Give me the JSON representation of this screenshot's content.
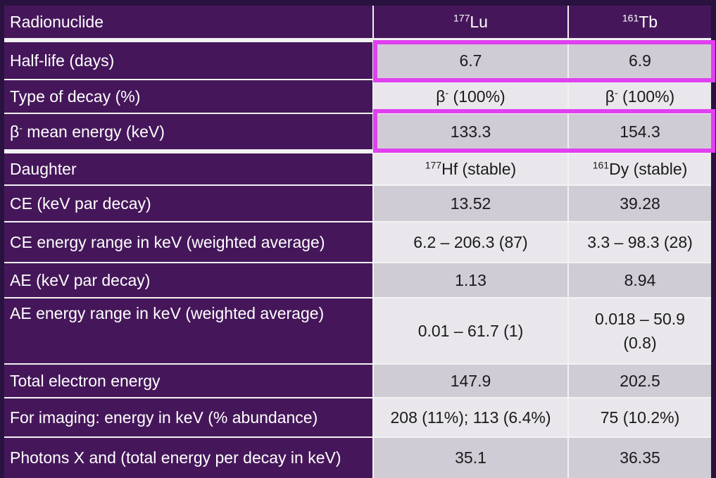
{
  "table": {
    "header": {
      "label": "Radionuclide",
      "col1_sup": "177",
      "col1_name": "Lu",
      "col2_sup": "161",
      "col2_name": "Tb"
    },
    "rows": {
      "half_life": {
        "label": "Half-life (days)",
        "lu": "6.7",
        "tb": "6.9"
      },
      "decay_type": {
        "label": "Type of decay (%)",
        "lu_sym": "β",
        "lu_sup": "-",
        "lu_val": " (100%)",
        "tb_sym": "β",
        "tb_sup": "-",
        "tb_val": " (100%)"
      },
      "beta_mean": {
        "label_sym": "β",
        "label_sup": "-",
        "label_rest": " mean energy (keV)",
        "lu": "133.3",
        "tb": "154.3"
      },
      "daughter": {
        "label": "Daughter",
        "lu_sup": "177",
        "lu_val": "Hf (stable)",
        "tb_sup": "161",
        "tb_val": "Dy (stable)"
      },
      "ce": {
        "label": "CE (keV par decay)",
        "lu": "13.52",
        "tb": "39.28"
      },
      "ce_range": {
        "label": "CE energy range in keV (weighted average)",
        "lu": "6.2 – 206.3 (87)",
        "tb": "3.3 – 98.3 (28)"
      },
      "ae": {
        "label": "AE (keV par decay)",
        "lu": "1.13",
        "tb": "8.94"
      },
      "ae_range": {
        "label": "AE energy range in keV (weighted average)",
        "lu": "0.01 – 61.7 (1)",
        "tb_line1": "0.018 – 50.9",
        "tb_line2": "(0.8)"
      },
      "total_electron": {
        "label": "Total electron energy",
        "lu": "147.9",
        "tb": "202.5"
      },
      "imaging": {
        "label": "For imaging: energy in keV (% abundance)",
        "lu": "208 (11%); 113 (6.4%)",
        "tb": "75 (10.2%)"
      },
      "photons": {
        "label": "Photons X and (total energy per decay in keV)",
        "lu": "35.1",
        "tb": "36.35"
      }
    }
  },
  "colors": {
    "header_bg": "#45175a",
    "highlight": "#e040f0",
    "cell_dark": "#d0ccd5",
    "cell_light": "#e9e7ec"
  }
}
